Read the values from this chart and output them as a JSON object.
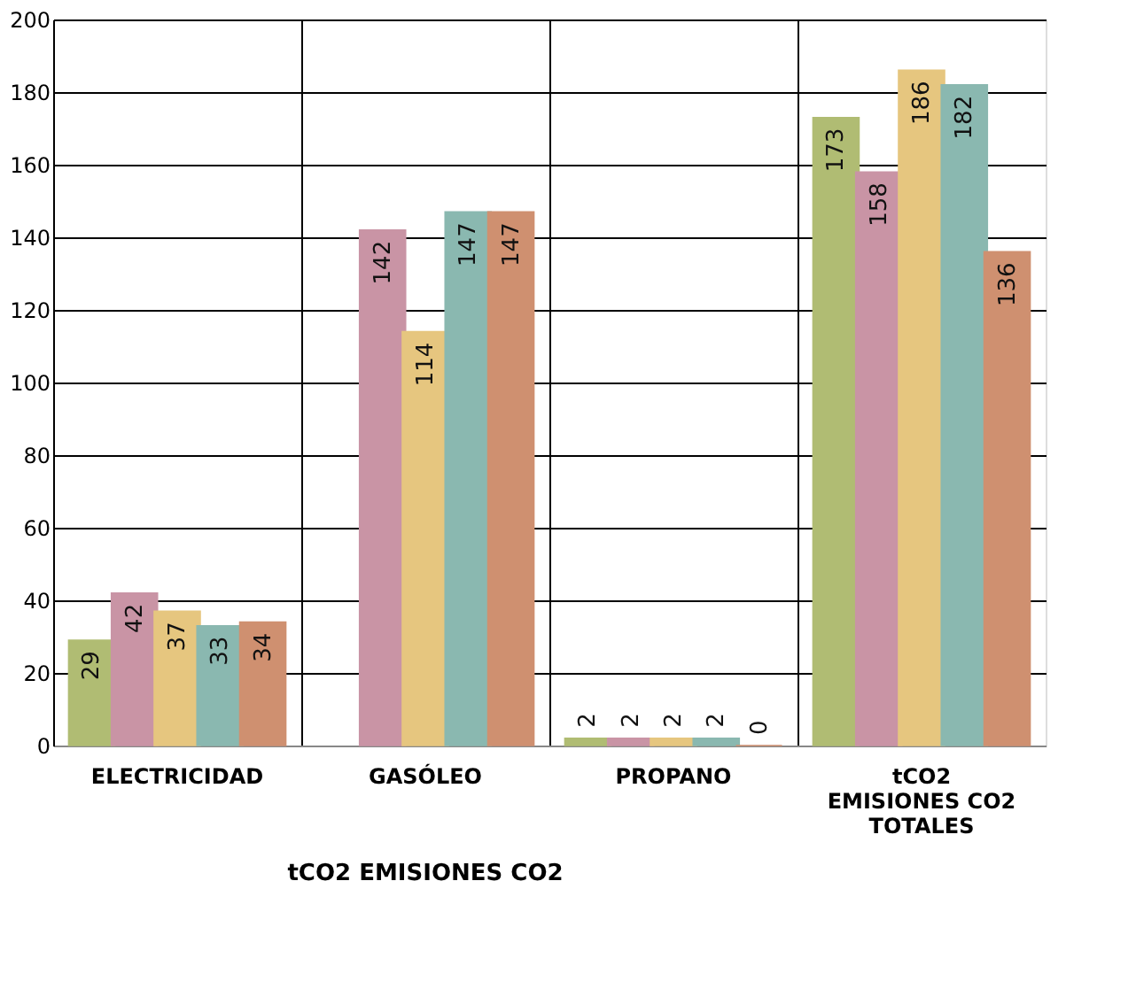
{
  "chart_data": {
    "type": "bar",
    "categories": [
      "ELECTRICIDAD",
      "GASÓLEO",
      "PROPANO",
      "tCO2\nEMISIONES CO2\nTOTALES"
    ],
    "series": [
      {
        "color": "#b0bc73",
        "values": [
          29,
          null,
          2,
          173
        ]
      },
      {
        "color": "#c994a5",
        "values": [
          42,
          142,
          2,
          158
        ]
      },
      {
        "color": "#e6c67f",
        "values": [
          37,
          114,
          2,
          186
        ]
      },
      {
        "color": "#8ab8b0",
        "values": [
          33,
          147,
          2,
          182
        ]
      },
      {
        "color": "#cf9070",
        "values": [
          34,
          147,
          0,
          136
        ]
      }
    ],
    "ylim": [
      0,
      200
    ],
    "yticks": [
      0,
      20,
      40,
      60,
      80,
      100,
      120,
      140,
      160,
      180,
      200
    ],
    "grid": true,
    "legend": false,
    "data_labels": true,
    "annotations": [
      "tCO2 EMISIONES CO2"
    ]
  }
}
